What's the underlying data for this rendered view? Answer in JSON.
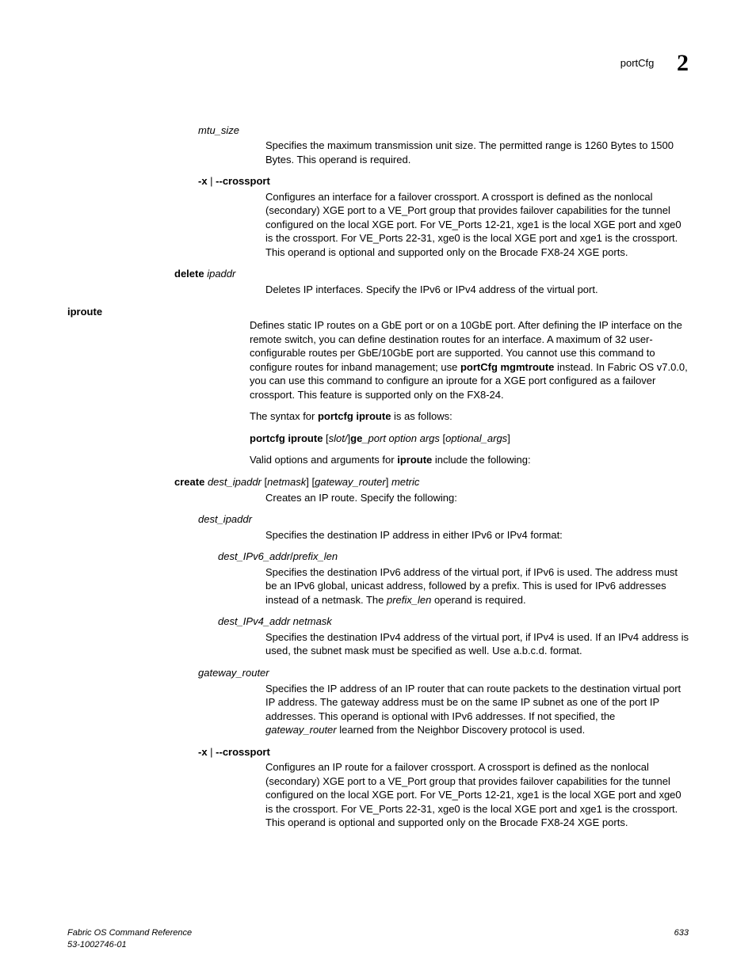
{
  "header": {
    "title": "portCfg",
    "chapter": "2"
  },
  "entries": [
    {
      "termClass": "term-1",
      "term": "mtu_size",
      "descClass": "desc",
      "desc": "Specifies the maximum transmission unit size. The permitted range is 1260 Bytes to 1500 Bytes. This operand is required."
    },
    {
      "termClass": "term-1b",
      "termHtml": "<span class='bold'>-x</span> | <span class='bold'>--crossport</span>",
      "descClass": "desc",
      "desc": "Configures an interface for a failover crossport. A crossport is defined as the nonlocal (secondary) XGE port to a VE_Port group that provides failover capabilities for the tunnel configured on the local XGE port. For VE_Ports 12-21, xge1 is the local XGE port and xge0 is the crossport. For VE_Ports 22-31, xge0 is the local XGE port and xge1 is the crossport. This operand is optional and supported only on the Brocade FX8-24 XGE ports."
    },
    {
      "termClass": "term-0i",
      "termHtml": "<span class='bold'>delete</span> <span class='italic'>ipaddr</span>",
      "descClass": "desc",
      "desc": "Deletes IP interfaces. Specify the IPv6 or IPv4 address of the virtual port."
    },
    {
      "termClass": "term-label",
      "term": "iproute",
      "descClass": "desc-main",
      "descHtml": "Defines static IP routes on a GbE port or on a 10GbE port. After defining the IP interface on the remote switch, you can define destination routes for an interface. A maximum of 32 user-configurable routes per GbE/10GbE port are supported. You cannot use this command to configure routes for inband management; use <span class='bold'>portCfg mgmtroute</span> instead. In Fabric OS v7.0.0, you can use this command to configure an iproute for a XGE port configured as a failover crossport. This feature is supported only on the FX8-24."
    },
    {
      "descClass": "desc-main",
      "descHtml": "The syntax for <span class='bold'>portcfg iproute</span> is as follows:"
    },
    {
      "descClass": "desc-main",
      "descHtml": "<span class='bold'>portcfg iproute</span> [<span class='italic'>slot/</span>]<span class='bold'>ge</span><span class='italic'>_port option args</span> [<span class='italic'>optional_args</span>]"
    },
    {
      "descClass": "desc-main",
      "descHtml": "Valid options and arguments for <span class='bold'>iproute</span> include the following:"
    },
    {
      "termClass": "term-0i",
      "termHtml": "<span class='bold'>create</span> <span class='italic'>dest_ipaddr</span> [<span class='italic'>netmask</span>] [<span class='italic'>gateway_router</span>] <span class='italic'>metric</span>",
      "descClass": "desc",
      "descInline": true,
      "desc": "Creates an IP route. Specify the following:"
    },
    {
      "termClass": "term-1",
      "term": "dest_ipaddr",
      "descClass": "desc",
      "desc": "Specifies the destination IP address in either IPv6 or IPv4 format:"
    },
    {
      "termClass": "term-2",
      "termHtml": "dest_IPv6_addr<span style='font-style:normal'>/</span>prefix_len",
      "descClass": "desc",
      "descHtml": "Specifies the destination IPv6 address of the virtual port, if IPv6 is used. The address must be an IPv6 global, unicast address, followed by a prefix. This is used for IPv6 addresses instead of a netmask. The <span class='italic'>prefix_len</span> operand is required."
    },
    {
      "termClass": "term-2",
      "term": "dest_IPv4_addr netmask",
      "descClass": "desc",
      "desc": "Specifies the destination IPv4 address of the virtual port, if IPv4 is used. If an IPv4 address is used, the subnet mask must be specified as well. Use a.b.c.d. format."
    },
    {
      "termClass": "term-1",
      "term": "gateway_router",
      "descClass": "desc",
      "descHtml": "Specifies the IP address of an IP router that can route packets to the destination virtual port IP address. The gateway address must be on the same IP subnet as one of the port IP addresses. This operand is optional with IPv6 addresses. If not specified, the <span class='italic'>gateway_router</span> learned from the Neighbor Discovery protocol is used."
    },
    {
      "termClass": "term-1b",
      "termHtml": "<span class='bold'>-x</span> | <span class='bold'>--crossport</span>",
      "descClass": "desc",
      "desc": "Configures an IP route for a failover crossport. A crossport is defined as the nonlocal (secondary) XGE port to a VE_Port group that provides failover capabilities for the tunnel configured on the local XGE port. For VE_Ports 12-21, xge1 is the local XGE port and xge0 is the crossport. For VE_Ports 22-31, xge0 is the local XGE port and xge1 is the crossport. This operand is optional and supported only on the Brocade FX8-24 XGE ports."
    }
  ],
  "footer": {
    "line1": "Fabric OS Command Reference",
    "line2": "53-1002746-01",
    "pagenum": "633"
  }
}
